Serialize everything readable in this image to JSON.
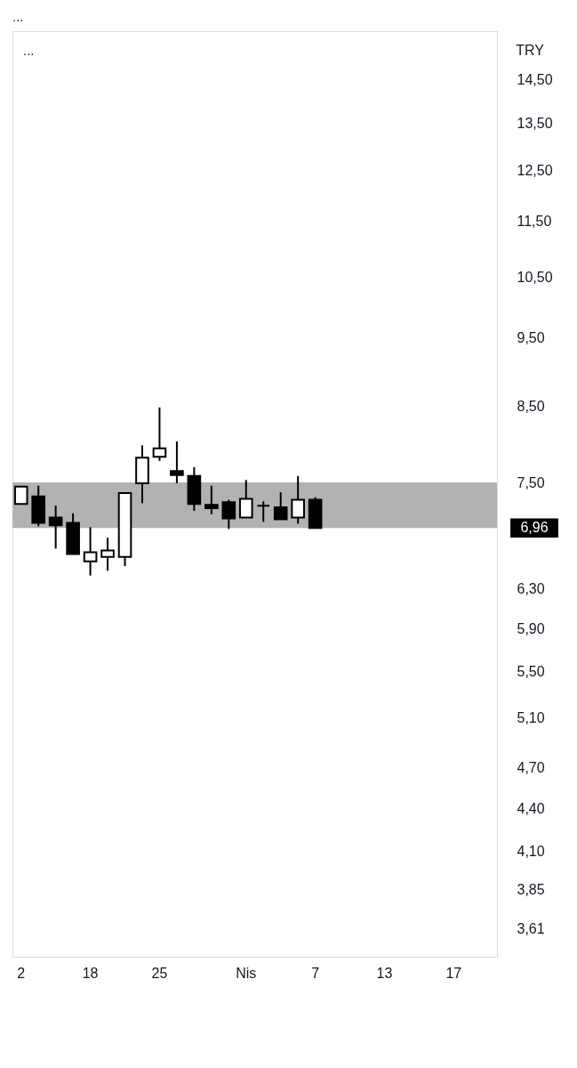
{
  "chart_data": {
    "type": "candlestick",
    "title": "...",
    "ylabel": "TRY",
    "categories": [
      "2",
      null,
      null,
      null,
      "18",
      null,
      null,
      null,
      "25",
      null,
      null,
      null,
      null,
      "Nis",
      null,
      null,
      null,
      "7",
      null,
      null,
      null,
      "13",
      null,
      null,
      null,
      "17",
      null,
      null
    ],
    "ohlc": [
      [
        7.24,
        7.45,
        7.24,
        7.45
      ],
      [
        7.33,
        7.46,
        6.98,
        7.02
      ],
      [
        7.08,
        7.22,
        6.73,
        6.99
      ],
      [
        7.02,
        7.13,
        6.67,
        6.67
      ],
      [
        6.59,
        6.97,
        6.44,
        6.69
      ],
      [
        6.64,
        6.85,
        6.49,
        6.71
      ],
      [
        6.64,
        7.37,
        6.54,
        7.37
      ],
      [
        7.49,
        7.97,
        7.25,
        7.81
      ],
      [
        7.82,
        8.48,
        7.77,
        7.93
      ],
      [
        7.64,
        8.02,
        7.49,
        7.59
      ],
      [
        7.58,
        7.69,
        7.16,
        7.24
      ],
      [
        7.23,
        7.46,
        7.12,
        7.19
      ],
      [
        7.26,
        7.29,
        6.95,
        7.07
      ],
      [
        7.08,
        7.53,
        7.08,
        7.3
      ],
      [
        7.22,
        7.27,
        7.03,
        7.22
      ],
      [
        7.2,
        7.38,
        7.06,
        7.06
      ],
      [
        7.08,
        7.58,
        7.01,
        7.29
      ],
      [
        7.29,
        7.32,
        6.96,
        6.96
      ],
      null,
      null,
      null,
      null,
      null,
      null,
      null,
      null,
      null,
      null
    ],
    "color": "#000000",
    "colors": [
      "#ffffff",
      "#000000",
      "#000000",
      "#000000",
      "#ffffff",
      "#ffffff",
      "#ffffff",
      "#ffffff",
      "#ffffff",
      "#000000",
      "#000000",
      "#000000",
      "#000000",
      "#ffffff",
      "#000000",
      "#000000",
      "#ffffff",
      "#000000",
      null,
      null,
      null,
      null,
      null,
      null,
      null,
      null,
      null,
      null
    ],
    "log": true,
    "ylim": [
      3.45,
      15.7
    ],
    "yticks": [
      {
        "value": 3.61,
        "label": "3,61"
      },
      {
        "value": 3.85,
        "label": "3,85"
      },
      {
        "value": 4.1,
        "label": "4,10"
      },
      {
        "value": 4.4,
        "label": "4,40"
      },
      {
        "value": 4.7,
        "label": "4,70"
      },
      {
        "value": 5.1,
        "label": "5,10"
      },
      {
        "value": 5.5,
        "label": "5,50"
      },
      {
        "value": 5.9,
        "label": "5,90"
      },
      {
        "value": 6.3,
        "label": "6,30"
      },
      {
        "value": 7.5,
        "label": "7,50"
      },
      {
        "value": 8.5,
        "label": "8,50"
      },
      {
        "value": 9.5,
        "label": "9,50"
      },
      {
        "value": 10.5,
        "label": "10,50"
      },
      {
        "value": 11.5,
        "label": "11,50"
      },
      {
        "value": 12.5,
        "label": "12,50"
      },
      {
        "value": 13.5,
        "label": "13,50"
      },
      {
        "value": 14.5,
        "label": "14,50"
      }
    ],
    "bands": [
      {
        "axis": "y",
        "from": 6.96,
        "to": 7.5,
        "color": "#b2b2b2"
      }
    ],
    "annotations": [
      "...",
      "6,96"
    ],
    "grid": false
  }
}
